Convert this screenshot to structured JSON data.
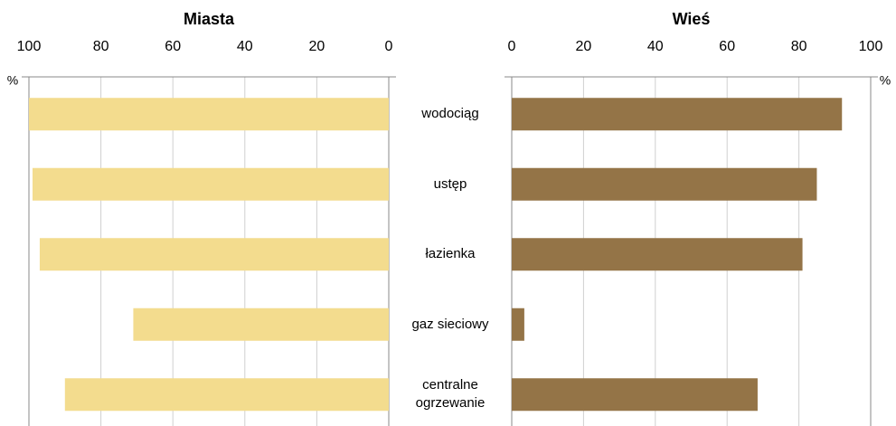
{
  "chart_data": [
    {
      "type": "bar",
      "title": "Miasta",
      "unit": "%",
      "categories": [
        "wodociąg",
        "ustęp",
        "łazienka",
        "gaz sieciowy",
        "centralne ogrzewanie"
      ],
      "values": [
        100,
        99,
        97,
        71,
        90
      ],
      "color": "#f3dc8e",
      "xlim": [
        100,
        0
      ],
      "xticks": [
        100,
        80,
        60,
        40,
        20,
        0
      ],
      "grid": true
    },
    {
      "type": "bar",
      "title": "Wieś",
      "unit": "%",
      "values": [
        92,
        85,
        81,
        3.5,
        68.5
      ],
      "color": "#947447",
      "xlim": [
        0,
        100
      ],
      "xticks": [
        0,
        20,
        40,
        60,
        80,
        100
      ],
      "grid": true
    }
  ]
}
